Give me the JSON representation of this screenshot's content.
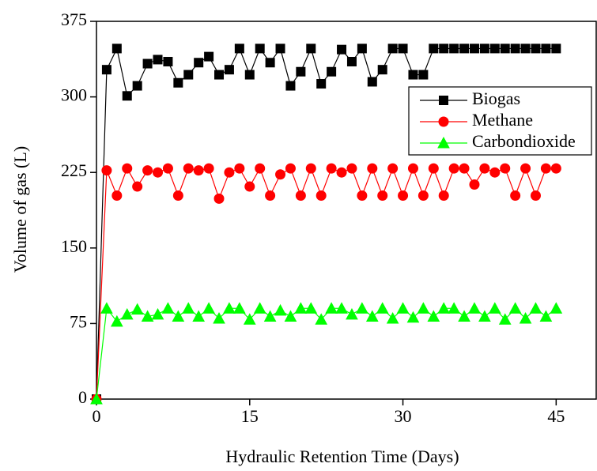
{
  "chart_data": {
    "type": "line",
    "x_label": "Hydraulic Retention Time (Days)",
    "y_label": "Volume of gas (L)",
    "x": [
      0,
      1,
      2,
      3,
      4,
      5,
      6,
      7,
      8,
      9,
      10,
      11,
      12,
      13,
      14,
      15,
      16,
      17,
      18,
      19,
      20,
      21,
      22,
      23,
      24,
      25,
      26,
      27,
      28,
      29,
      30,
      31,
      32,
      33,
      34,
      35,
      36,
      37,
      38,
      39,
      40,
      41,
      42,
      43,
      44,
      45
    ],
    "series": [
      {
        "name": "Biogas",
        "color": "#000000",
        "marker": "square",
        "values": [
          0,
          327,
          348,
          301,
          311,
          333,
          337,
          335,
          314,
          322,
          334,
          340,
          322,
          327,
          348,
          322,
          348,
          334,
          348,
          311,
          325,
          348,
          313,
          325,
          347,
          335,
          348,
          315,
          327,
          348,
          348,
          322,
          322,
          348,
          348,
          348,
          348,
          348,
          348,
          348,
          348,
          348,
          348,
          348,
          348,
          348
        ]
      },
      {
        "name": "Methane",
        "color": "#ff0000",
        "marker": "circle",
        "values": [
          0,
          227,
          202,
          229,
          211,
          227,
          225,
          229,
          202,
          229,
          227,
          229,
          199,
          225,
          229,
          211,
          229,
          202,
          223,
          229,
          202,
          229,
          202,
          229,
          225,
          229,
          202,
          229,
          202,
          229,
          202,
          229,
          202,
          229,
          202,
          229,
          229,
          213,
          229,
          225,
          229,
          202,
          229,
          202,
          229,
          229
        ]
      },
      {
        "name": "Carbondioxide",
        "color": "#00ff00",
        "marker": "triangle",
        "values": [
          0,
          90,
          77,
          84,
          89,
          82,
          84,
          90,
          82,
          90,
          82,
          90,
          80,
          90,
          90,
          79,
          90,
          82,
          88,
          82,
          90,
          90,
          79,
          90,
          90,
          84,
          90,
          82,
          90,
          80,
          90,
          81,
          90,
          82,
          90,
          90,
          82,
          90,
          82,
          90,
          79,
          90,
          80,
          90,
          82,
          90
        ]
      }
    ],
    "xlim": [
      0,
      49
    ],
    "xticks": [
      0,
      15,
      30,
      45
    ],
    "ylim": [
      0,
      375
    ],
    "yticks": [
      0,
      75,
      150,
      225,
      300,
      375
    ],
    "legend": "upper right"
  }
}
